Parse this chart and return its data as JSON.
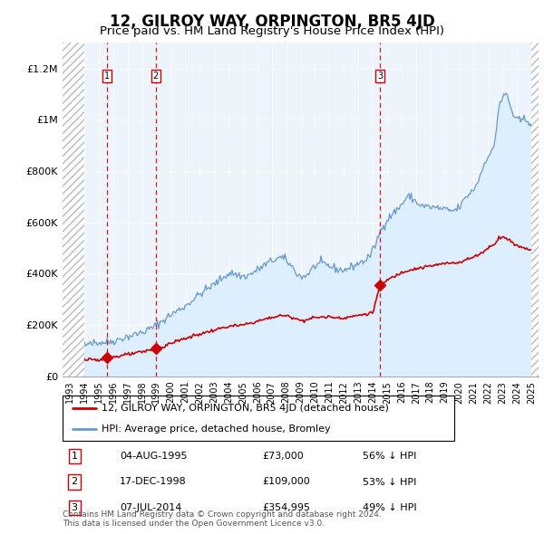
{
  "title": "12, GILROY WAY, ORPINGTON, BR5 4JD",
  "subtitle": "Price paid vs. HM Land Registry's House Price Index (HPI)",
  "title_fontsize": 12,
  "subtitle_fontsize": 9.5,
  "years_start": 1993,
  "years_end": 2025,
  "xlim": [
    1992.5,
    2025.5
  ],
  "ylim": [
    0,
    1300000
  ],
  "yticks": [
    0,
    200000,
    400000,
    600000,
    800000,
    1000000,
    1200000
  ],
  "ytick_labels": [
    "£0",
    "£200K",
    "£400K",
    "£600K",
    "£800K",
    "£1M",
    "£1.2M"
  ],
  "hpi_fill_color": "#ddeeff",
  "hpi_line_color": "#6699cc",
  "property_color": "#cc0000",
  "transaction_color": "#cc0000",
  "hatch_color": "#bbbbbb",
  "chart_bg": "#eef4fb",
  "transactions": [
    {
      "date": "04-AUG-1995",
      "year_float": 1995.59,
      "price": 73000,
      "label": "1",
      "pct": "56% ↓ HPI"
    },
    {
      "date": "17-DEC-1998",
      "year_float": 1998.96,
      "price": 109000,
      "label": "2",
      "pct": "53% ↓ HPI"
    },
    {
      "date": "07-JUL-2014",
      "year_float": 2014.51,
      "price": 354995,
      "label": "3",
      "pct": "49% ↓ HPI"
    }
  ],
  "legend_property": "12, GILROY WAY, ORPINGTON, BR5 4JD (detached house)",
  "legend_hpi": "HPI: Average price, detached house, Bromley",
  "footnote": "Contains HM Land Registry data © Crown copyright and database right 2024.\nThis data is licensed under the Open Government Licence v3.0.",
  "hatch_left_end": 1994.0,
  "hatch_right_start": 2025.0
}
